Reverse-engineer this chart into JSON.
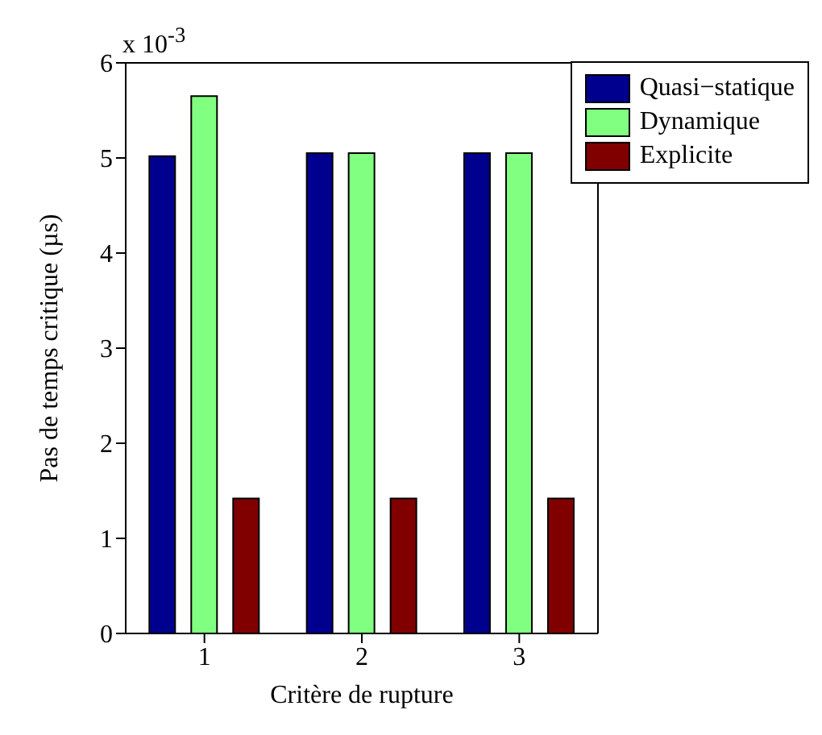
{
  "chart_data": {
    "type": "bar",
    "categories": [
      "1",
      "2",
      "3"
    ],
    "series": [
      {
        "name": "Quasi−statique",
        "color": "#00008f",
        "values": [
          5.02,
          5.05,
          5.05
        ]
      },
      {
        "name": "Dynamique",
        "color": "#80ff80",
        "values": [
          5.65,
          5.05,
          5.05
        ]
      },
      {
        "name": "Explicite",
        "color": "#800000",
        "values": [
          1.42,
          1.42,
          1.42
        ]
      }
    ],
    "xlabel": "Critère de rupture",
    "ylabel": "Pas de temps critique (µs)",
    "annotations": [
      "x 10$^{-3}$"
    ],
    "ylim": [
      0,
      6
    ],
    "yticks": [
      0,
      1,
      2,
      3,
      4,
      5,
      6
    ],
    "legend": "top right"
  }
}
